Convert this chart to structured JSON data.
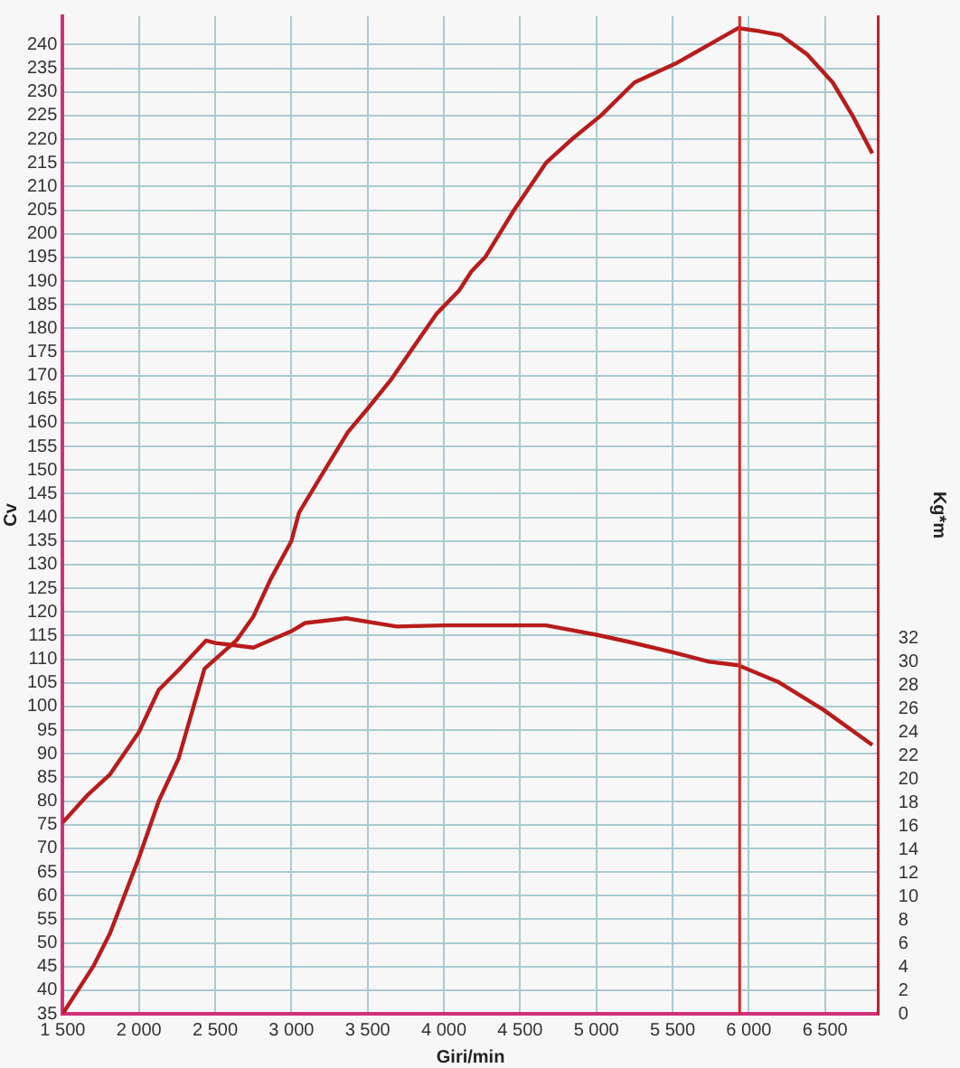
{
  "chart_data": {
    "type": "line",
    "xlabel": "Giri/min",
    "ylabel": "Cv",
    "y2label": "Kg*m",
    "xlim": [
      1500,
      6850
    ],
    "xticks": [
      {
        "value": 1500,
        "label": "1 500"
      },
      {
        "value": 2000,
        "label": "2 000"
      },
      {
        "value": 2500,
        "label": "2 500"
      },
      {
        "value": 3000,
        "label": "3 000"
      },
      {
        "value": 3500,
        "label": "3 500"
      },
      {
        "value": 4000,
        "label": "4 000"
      },
      {
        "value": 4500,
        "label": "4 500"
      },
      {
        "value": 5000,
        "label": "5 000"
      },
      {
        "value": 5500,
        "label": "5 500"
      },
      {
        "value": 6000,
        "label": "6 000"
      },
      {
        "value": 6500,
        "label": "6 500"
      }
    ],
    "ylim": [
      35,
      246
    ],
    "yticks": [
      35,
      40,
      45,
      50,
      55,
      60,
      65,
      70,
      75,
      80,
      85,
      90,
      95,
      100,
      105,
      110,
      115,
      120,
      125,
      130,
      135,
      140,
      145,
      150,
      155,
      160,
      165,
      170,
      175,
      180,
      185,
      190,
      195,
      200,
      205,
      210,
      215,
      220,
      225,
      230,
      235,
      240
    ],
    "y2lim": [
      0,
      85
    ],
    "y2ticks": [
      0,
      2,
      4,
      6,
      8,
      10,
      12,
      14,
      16,
      18,
      20,
      22,
      24,
      26,
      28,
      30,
      32
    ],
    "grid": true,
    "legend": false,
    "marker": "none",
    "line_style": "solid",
    "ref_lines": [
      {
        "axis": "x",
        "value": 5940,
        "color": "#d42a2a"
      }
    ],
    "series": [
      {
        "color": "#b81c1c",
        "x": [
          1500,
          1700,
          1810,
          2000,
          2130,
          2260,
          2430,
          2500,
          2640,
          2750,
          2865,
          3000,
          3050,
          3180,
          3370,
          3500,
          3650,
          3800,
          3950,
          4100,
          4180,
          4270,
          4460,
          4670,
          4840,
          5030,
          5250,
          5520,
          5740,
          5930,
          6040,
          6210,
          6380,
          6550,
          6680,
          6810
        ],
        "values": [
          35,
          45,
          52,
          68,
          80,
          89,
          108,
          110,
          114,
          119,
          127,
          135,
          141,
          148,
          158,
          163,
          169,
          176,
          183,
          188,
          192,
          195,
          205,
          215,
          220,
          225,
          232,
          236,
          240,
          243.5,
          243,
          242,
          238,
          232,
          225,
          217
        ]
      },
      {
        "color": "#b81c1c",
        "axis": "y2",
        "x": [
          1500,
          1660,
          1810,
          2000,
          2130,
          2260,
          2440,
          2500,
          2750,
          3000,
          3090,
          3360,
          3690,
          4000,
          4500,
          4670,
          5000,
          5210,
          5500,
          5740,
          5930,
          6190,
          6490,
          6810
        ],
        "values": [
          16.3,
          18.6,
          20.4,
          24,
          27.6,
          29.3,
          31.8,
          31.6,
          31.2,
          32.6,
          33.3,
          33.7,
          33,
          33.1,
          33.1,
          33.1,
          32.3,
          31.7,
          30.8,
          30,
          29.7,
          28.3,
          25.9,
          22.9
        ]
      }
    ]
  }
}
